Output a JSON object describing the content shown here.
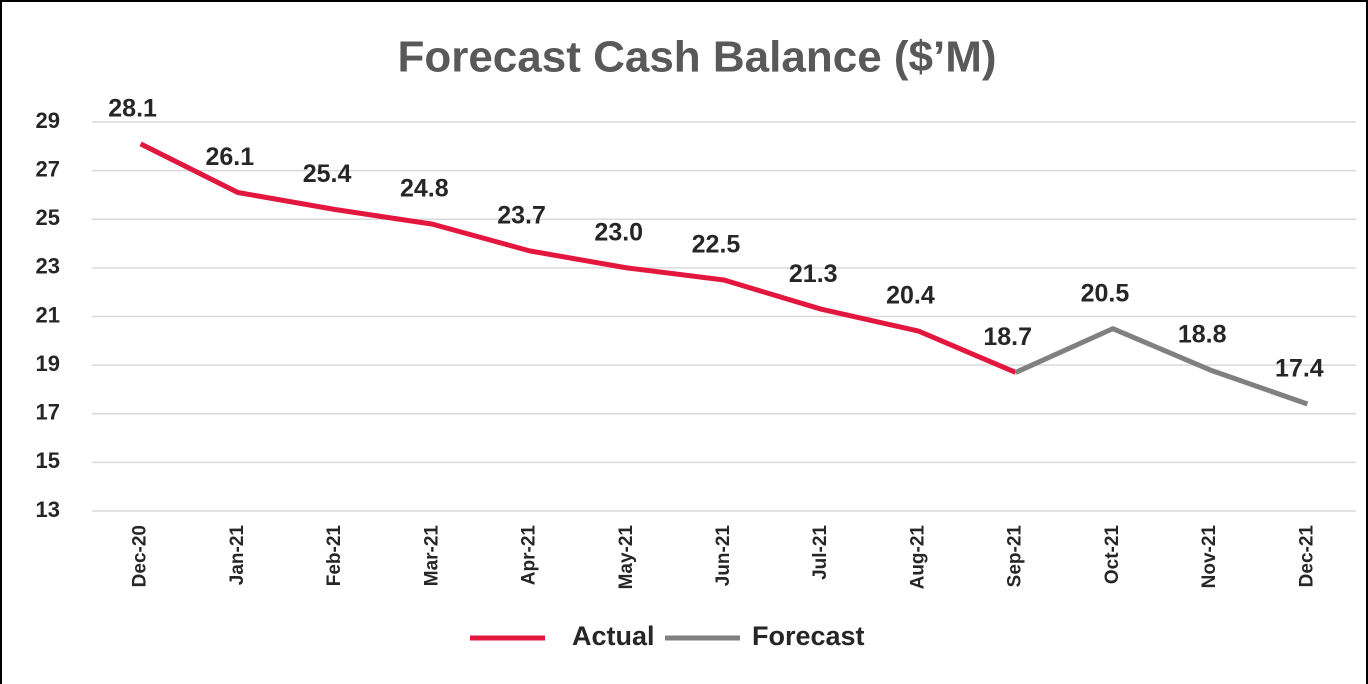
{
  "chart_data": {
    "type": "line",
    "title": "Forecast Cash Balance ($’M)",
    "categories": [
      "Dec-20",
      "Jan-21",
      "Feb-21",
      "Mar-21",
      "Apr-21",
      "May-21",
      "Jun-21",
      "Jul-21",
      "Aug-21",
      "Sep-21",
      "Oct-21",
      "Nov-21",
      "Dec-21"
    ],
    "series": [
      {
        "name": "Actual",
        "color": "#e3173e",
        "values": [
          28.1,
          26.1,
          25.4,
          24.8,
          23.7,
          23.0,
          22.5,
          21.3,
          20.4,
          18.7,
          null,
          null,
          null
        ],
        "value_labels": [
          "28.1",
          "26.1",
          "25.4",
          "24.8",
          "23.7",
          "23.0",
          "22.5",
          "21.3",
          "20.4",
          "18.7",
          null,
          null,
          null
        ]
      },
      {
        "name": "Forecast",
        "color": "#808080",
        "values": [
          null,
          null,
          null,
          null,
          null,
          null,
          null,
          null,
          null,
          18.7,
          20.5,
          18.8,
          17.4
        ],
        "value_labels": [
          null,
          null,
          null,
          null,
          null,
          null,
          null,
          null,
          null,
          null,
          "20.5",
          "18.8",
          "17.4"
        ]
      }
    ],
    "ylim": [
      13,
      29
    ],
    "yticks": [
      13,
      15,
      17,
      19,
      21,
      23,
      25,
      27,
      29
    ],
    "grid": true,
    "legend": "bottom"
  }
}
